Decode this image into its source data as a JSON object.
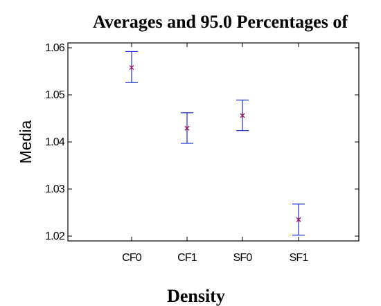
{
  "chart_data": {
    "type": "scatter",
    "title": "Averages and 95.0 Percentages of",
    "xlabel": "Density",
    "ylabel": "Media",
    "categories": [
      "CF0",
      "CF1",
      "SF0",
      "SF1"
    ],
    "series": [
      {
        "means": [
          1.0558,
          1.0429,
          1.0456,
          1.0235
        ],
        "lower": [
          1.0526,
          1.0397,
          1.0424,
          1.0202
        ],
        "upper": [
          1.0592,
          1.0462,
          1.0489,
          1.0268
        ]
      }
    ],
    "ylim": [
      1.019,
      1.061
    ],
    "yticks": [
      "1.02",
      "1.03",
      "1.04",
      "1.05",
      "1.06"
    ],
    "grid": false,
    "colors": {
      "marker": "#8b1a6b",
      "errorbar": "#1f2fd6",
      "axis": "#000000"
    }
  }
}
